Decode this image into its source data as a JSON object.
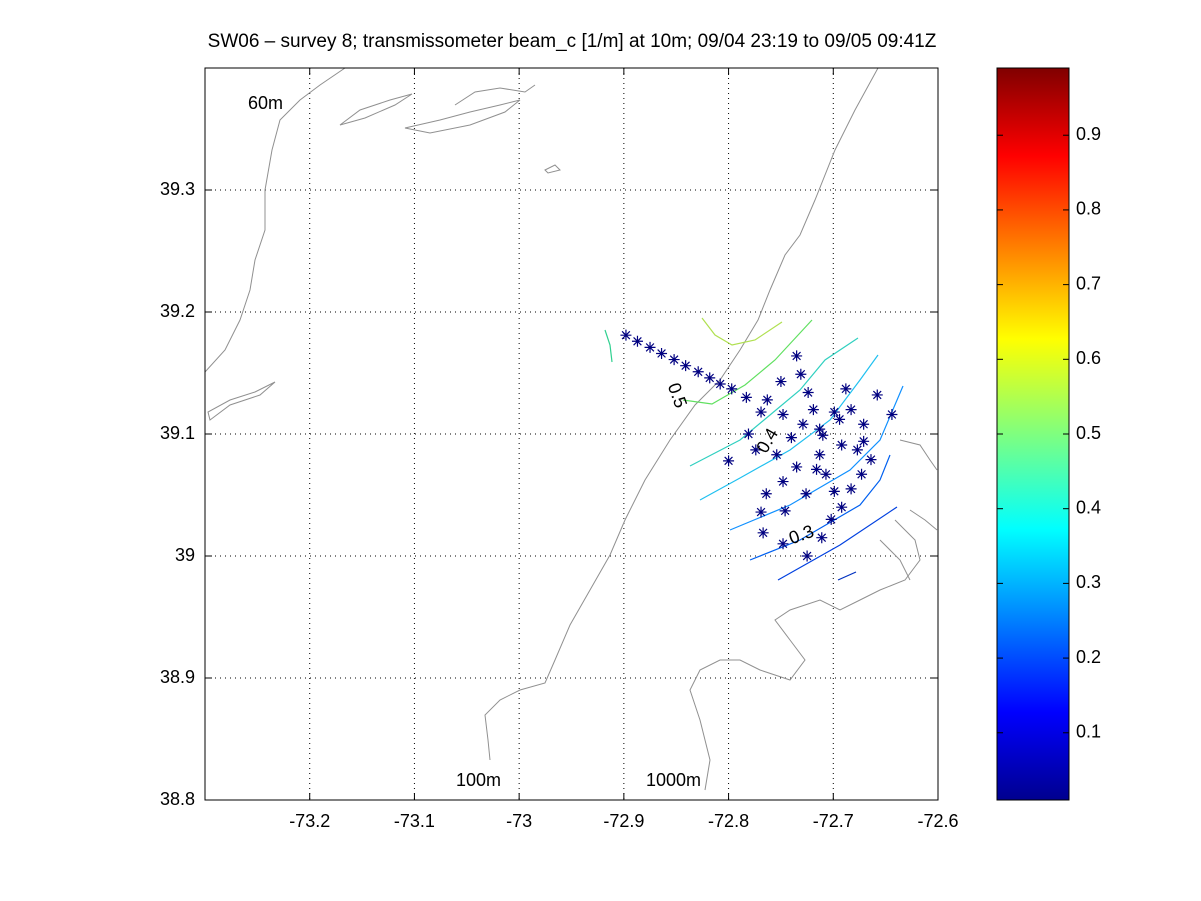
{
  "chart_data": {
    "type": "scatter",
    "title": "SW06 – survey 8; transmissometer beam_c [1/m] at 10m; 09/04 23:19 to 09/05 09:41Z",
    "x": [
      -72.898,
      -72.887,
      -72.875,
      -72.864,
      -72.852,
      -72.841,
      -72.829,
      -72.818,
      -72.808,
      -72.797,
      -72.783,
      -72.735,
      -72.731,
      -72.75,
      -72.763,
      -72.769,
      -72.781,
      -72.8,
      -72.774,
      -72.748,
      -72.724,
      -72.719,
      -72.729,
      -72.713,
      -72.71,
      -72.699,
      -72.688,
      -72.683,
      -72.694,
      -72.658,
      -72.644,
      -72.671,
      -72.671,
      -72.664,
      -72.677,
      -72.692,
      -72.713,
      -72.716,
      -72.735,
      -72.707,
      -72.74,
      -72.754,
      -72.673,
      -72.683,
      -72.692,
      -72.702,
      -72.726,
      -72.699,
      -72.748,
      -72.764,
      -72.769,
      -72.767,
      -72.748,
      -72.711,
      -72.725,
      -72.746
    ],
    "y": [
      39.181,
      39.176,
      39.171,
      39.166,
      39.161,
      39.156,
      39.151,
      39.146,
      39.141,
      39.137,
      39.13,
      39.164,
      39.149,
      39.143,
      39.128,
      39.118,
      39.1,
      39.078,
      39.087,
      39.116,
      39.134,
      39.12,
      39.108,
      39.104,
      39.099,
      39.118,
      39.137,
      39.12,
      39.112,
      39.132,
      39.116,
      39.108,
      39.094,
      39.079,
      39.087,
      39.091,
      39.083,
      39.071,
      39.073,
      39.067,
      39.097,
      39.083,
      39.067,
      39.055,
      39.04,
      39.03,
      39.051,
      39.053,
      39.061,
      39.051,
      39.036,
      39.019,
      39.01,
      39.015,
      39.0,
      39.037
    ],
    "color": "#000080",
    "xlim": [
      -73.3,
      -72.6
    ],
    "xticks": [
      -73.2,
      -73.1,
      -73,
      -72.9,
      -72.8,
      -72.7,
      -72.6
    ],
    "ylim": [
      38.8,
      39.4
    ],
    "yticks": [
      38.8,
      38.9,
      39,
      39.1,
      39.2,
      39.3
    ],
    "grid": true,
    "annotations": [
      "60m",
      "100m",
      "1000m",
      "0.5",
      "0.4",
      "0.3"
    ],
    "colorbar": {
      "lim": [
        0.01,
        0.99
      ],
      "ticks": [
        0.1,
        0.2,
        0.3,
        0.4,
        0.5,
        0.6,
        0.7,
        0.8,
        0.9
      ]
    }
  }
}
